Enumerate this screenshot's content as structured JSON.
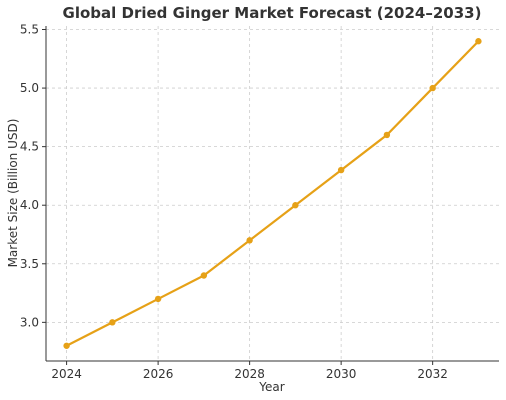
{
  "chart_data": {
    "type": "line",
    "title": "Global Dried Ginger Market Forecast (2024–2033)",
    "xlabel": "Year",
    "ylabel": "Market Size (Billion USD)",
    "x": [
      2024,
      2025,
      2026,
      2027,
      2028,
      2029,
      2030,
      2031,
      2032,
      2033
    ],
    "series": [
      {
        "values": [
          2.8,
          3.0,
          3.2,
          3.4,
          3.7,
          4.0,
          4.3,
          4.6,
          5.0,
          5.4
        ],
        "color": "#e6a117"
      }
    ],
    "xlim": [
      2023.55,
      2033.45
    ],
    "ylim": [
      2.67,
      5.53
    ],
    "xticks": [
      2024,
      2026,
      2028,
      2030,
      2032
    ],
    "xtick_labels": [
      "2024",
      "2026",
      "2028",
      "2030",
      "2032"
    ],
    "yticks": [
      3.0,
      3.5,
      4.0,
      4.5,
      5.0,
      5.5
    ],
    "ytick_labels": [
      "3.0",
      "3.5",
      "4.0",
      "4.5",
      "5.0",
      "5.5"
    ],
    "grid": true
  }
}
